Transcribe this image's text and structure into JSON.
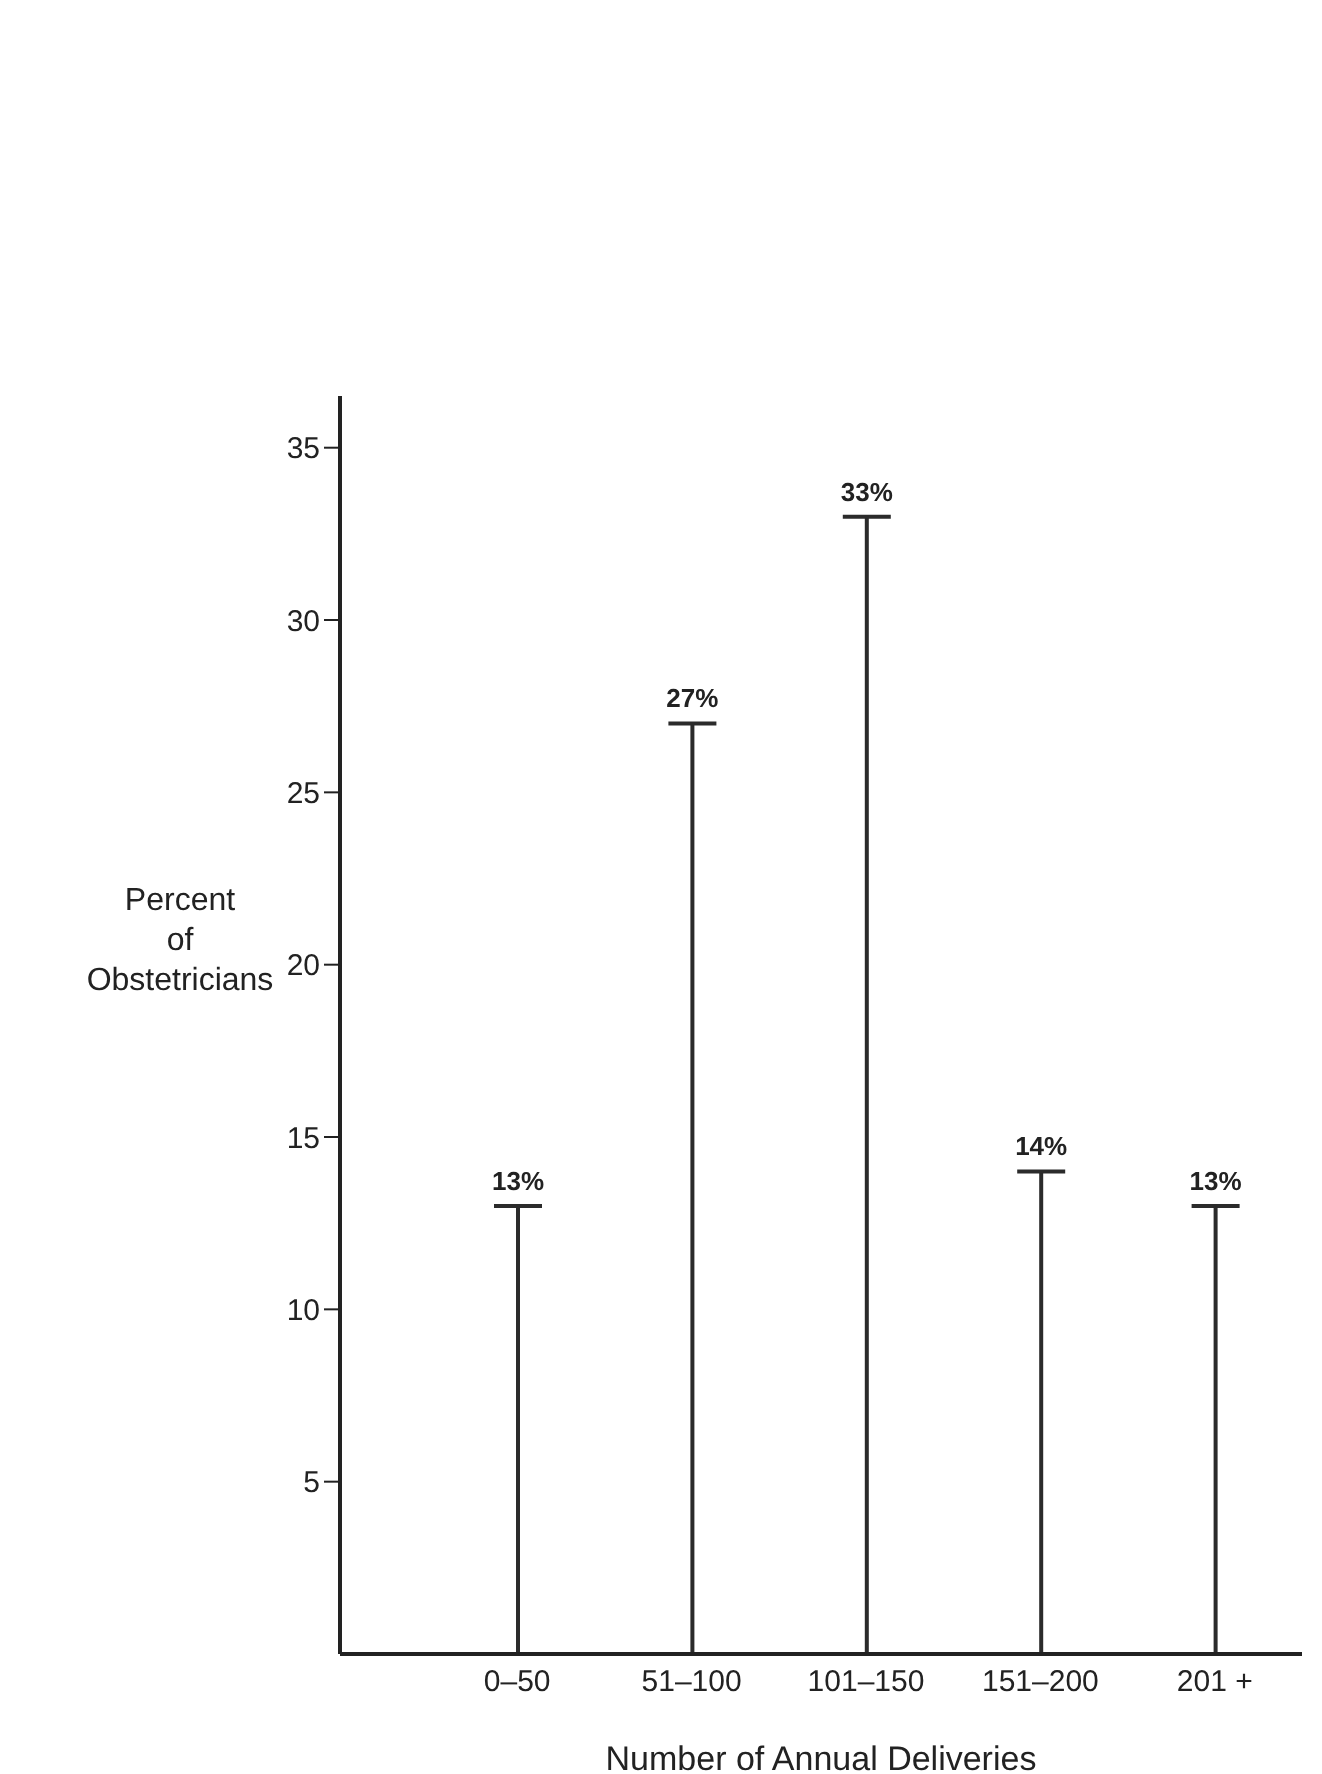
{
  "chart_data": {
    "type": "bar",
    "xlabel": "Number of Annual Deliveries",
    "ylabel": "Percent\nof\nObstetricians",
    "categories": [
      "0–50",
      "51–100",
      "101–150",
      "151–200",
      "201 +"
    ],
    "values": [
      13,
      27,
      33,
      14,
      13
    ],
    "value_labels": [
      "13%",
      "27%",
      "33%",
      "14%",
      "13%"
    ],
    "color": "#2b2b2b",
    "ylim": [
      0,
      36.5
    ],
    "yticks": [
      5,
      10,
      15,
      20,
      25,
      30,
      35
    ]
  }
}
